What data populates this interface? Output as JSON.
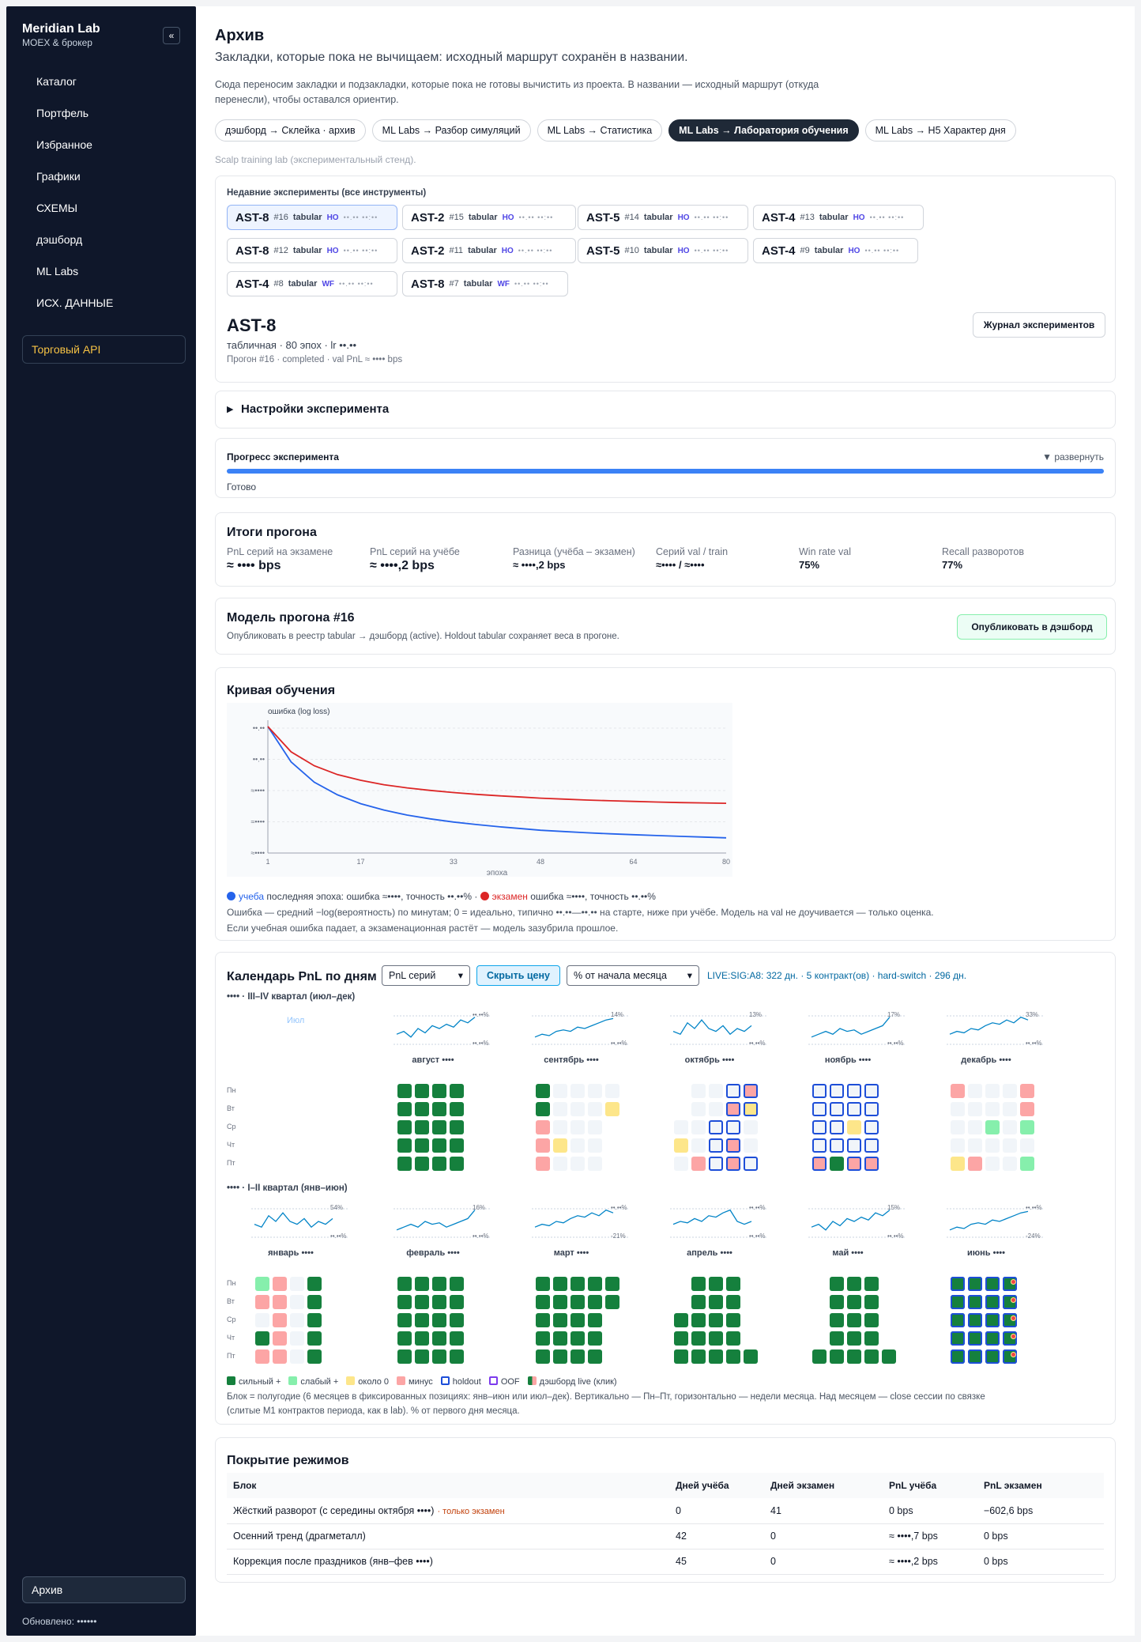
{
  "sidebar": {
    "brand": "Meridian Lab",
    "brand_sub": "MOEX & брокер",
    "collapse": "«",
    "items": [
      "Каталог",
      "Портфель",
      "Избранное",
      "Графики",
      "СХЕМЫ",
      "дэшборд",
      "ML Labs",
      "ИСХ. ДАННЫЕ"
    ],
    "trade_api": "Торговый API",
    "archive": "Архив",
    "updated": "Обновлено: ••••••"
  },
  "header": {
    "title": "Архив",
    "subtitle": "Закладки, которые пока не вычищаем: исходный маршрут сохранён в названии.",
    "description": "Сюда переносим закладки и подзакладки, которые пока не готовы вычистить из проекта. В названии — исходный маршрут (откуда перенесли), чтобы оставался ориентир."
  },
  "tabs": [
    {
      "label": "дэшборд → Склейка · архив",
      "active": false
    },
    {
      "label": "ML Labs → Разбор симуляций",
      "active": false
    },
    {
      "label": "ML Labs → Статистика",
      "active": false
    },
    {
      "label": "ML Labs → Лаборатория обучения",
      "active": true
    },
    {
      "label": "ML Labs → H5 Характер дня",
      "active": false
    }
  ],
  "note": "Scalp training lab (экспериментальный стенд).",
  "experiments": {
    "label": "Недавние эксперименты (все инструменты)",
    "chips": [
      {
        "asset": "AST-8",
        "run": "#16",
        "kind": "tabular",
        "tag": "HO",
        "date": "••.•• ••:••",
        "active": true
      },
      {
        "asset": "AST-2",
        "run": "#15",
        "kind": "tabular",
        "tag": "HO",
        "date": "••.•• ••:••",
        "active": false
      },
      {
        "asset": "AST-5",
        "run": "#14",
        "kind": "tabular",
        "tag": "HO",
        "date": "••.•• ••:••",
        "active": false
      },
      {
        "asset": "AST-4",
        "run": "#13",
        "kind": "tabular",
        "tag": "HO",
        "date": "••.•• ••:••",
        "active": false
      },
      {
        "asset": "AST-8",
        "run": "#12",
        "kind": "tabular",
        "tag": "HO",
        "date": "••.•• ••:••",
        "active": false
      },
      {
        "asset": "AST-2",
        "run": "#11",
        "kind": "tabular",
        "tag": "HO",
        "date": "••.•• ••:••",
        "active": false
      },
      {
        "asset": "AST-5",
        "run": "#10",
        "kind": "tabular",
        "tag": "HO",
        "date": "••.•• ••:••",
        "active": false
      },
      {
        "asset": "AST-4",
        "run": "#9",
        "kind": "tabular",
        "tag": "HO",
        "date": "••.•• ••:••",
        "active": false
      },
      {
        "asset": "AST-4",
        "run": "#8",
        "kind": "tabular",
        "tag": "WF",
        "date": "••.•• ••:••",
        "active": false
      },
      {
        "asset": "AST-8",
        "run": "#7",
        "kind": "tabular",
        "tag": "WF",
        "date": "••.•• ••:••",
        "active": false
      }
    ],
    "selected_title": "AST-8",
    "selected_meta": "табличная · 80 эпох · lr ••.••",
    "selected_run": "Прогон #16 · completed · val PnL ≈ •••• bps",
    "journal_button": "Журнал экспериментов"
  },
  "settings": {
    "label": "Настройки эксперимента",
    "arrow": "▶"
  },
  "progress": {
    "label": "Прогресс эксперимента",
    "expand": "▼ развернуть",
    "status": "Готово",
    "value": 1.0
  },
  "results": {
    "title": "Итоги прогона",
    "stats": [
      {
        "label": "PnL серий на экзамене",
        "value": "≈ •••• bps",
        "big": true
      },
      {
        "label": "PnL серий на учёбе",
        "value": "≈ ••••,2 bps",
        "big": true
      },
      {
        "label": "Разница (учёба – экзамен)",
        "value": "≈ ••••,2 bps",
        "big": false
      },
      {
        "label": "Серий val / train",
        "value": "≈•••• / ≈••••",
        "big": false
      },
      {
        "label": "Win rate val",
        "value": "75%",
        "big": false
      },
      {
        "label": "Recall разворотов",
        "value": "77%",
        "big": false
      }
    ]
  },
  "model": {
    "title": "Модель прогона #16",
    "desc": "Опубликовать в реестр tabular → дэшборд (active). Holdout tabular сохраняет веса в прогоне.",
    "button": "Опубликовать в дэшборд"
  },
  "curve": {
    "title": "Кривая обучения",
    "ylabel": "ошибка (log loss)",
    "xlabel": "эпоха",
    "yticks": [
      "••.••",
      "••.••",
      "≈••••",
      "≈••••",
      "≈••••"
    ],
    "xticks": [
      "1",
      "17",
      "33",
      "48",
      "64",
      "80"
    ],
    "legend_train": "учеба",
    "legend_train_text": "последняя эпоха: ошибка ≈••••, точность ••.••% ·",
    "legend_test": "экзамен",
    "legend_test_text": "ошибка ≈••••, точность ••.••%",
    "note1": "Ошибка — средний −log(вероятность) по минутам; 0 = идеально, типично ••.••—••.•• на старте, ниже при учёбе. Модель на val не доучивается — только оценка.",
    "note2": "Если учебная ошибка падает, а экзаменационная растёт — модель зазубрила прошлое.",
    "colors": {
      "train": "#2563eb",
      "test": "#dc2626"
    }
  },
  "chart_data": {
    "type": "line",
    "title": "Кривая обучения",
    "xlabel": "эпоха",
    "ylabel": "ошибка (log loss)",
    "x": [
      1,
      5,
      9,
      13,
      17,
      21,
      25,
      29,
      33,
      37,
      41,
      45,
      48,
      52,
      56,
      60,
      64,
      68,
      72,
      76,
      80
    ],
    "series": [
      {
        "name": "учеба",
        "values": [
          1.0,
          0.72,
          0.56,
          0.46,
          0.39,
          0.34,
          0.3,
          0.27,
          0.245,
          0.225,
          0.207,
          0.192,
          0.18,
          0.17,
          0.16,
          0.152,
          0.145,
          0.138,
          0.132,
          0.126,
          0.12
        ]
      },
      {
        "name": "экзамен",
        "values": [
          1.0,
          0.8,
          0.69,
          0.62,
          0.575,
          0.54,
          0.515,
          0.495,
          0.478,
          0.464,
          0.452,
          0.442,
          0.434,
          0.426,
          0.419,
          0.413,
          0.408,
          0.403,
          0.399,
          0.396,
          0.393
        ]
      }
    ],
    "ylim": [
      0,
      1.05
    ],
    "grid": true
  },
  "calendar": {
    "title": "Календарь PnL по дням",
    "mode_select": "PnL серий",
    "hide_price": "Скрыть цену",
    "pct_select": "% от начала месяца",
    "live": "LIVE:SIG:A8: 322 дн. · 5 контракт(ов) · hard-switch · 296 дн.",
    "days": [
      "Пн",
      "Вт",
      "Ср",
      "Чт",
      "Пт"
    ],
    "block1": "•••• · III–IV квартал (июл–дек)",
    "block2": "•••• · I–II квартал (янв–июн)",
    "july": "Июл",
    "months1": [
      {
        "name": "август ••••",
        "hi": "••.••%",
        "lo": "••.••%"
      },
      {
        "name": "сентябрь ••••",
        "hi": "14%",
        "lo": "••.••%"
      },
      {
        "name": "октябрь ••••",
        "hi": "13%",
        "lo": "••.••%"
      },
      {
        "name": "ноябрь ••••",
        "hi": "17%",
        "lo": "••.••%"
      },
      {
        "name": "декабрь ••••",
        "hi": "33%",
        "lo": "••.••%"
      }
    ],
    "months2": [
      {
        "name": "январь ••••",
        "hi": "54%",
        "lo": "••.••%"
      },
      {
        "name": "февраль ••••",
        "hi": "16%",
        "lo": "••.••%"
      },
      {
        "name": "март ••••",
        "hi": "••.••%",
        "lo": "-21%"
      },
      {
        "name": "апрель ••••",
        "hi": "••.••%",
        "lo": "••.••%"
      },
      {
        "name": "май ••••",
        "hi": "15%",
        "lo": "••.••%"
      },
      {
        "name": "июнь ••••",
        "hi": "••.••%",
        "lo": "-24%"
      }
    ],
    "legend": [
      "сильный +",
      "слабый +",
      "около 0",
      "минус",
      "holdout",
      "OOF",
      "дэшборд live (клик)"
    ],
    "note1": "Блок = полугодие (6 месяцев в фиксированных позициях: янв–июн или июл–дек). Вертикально — Пн–Пт, горизонтально — недели месяца. Над месяцем — close сессии по связке",
    "note2": "(слитые M1 контрактов периода, как в lab). % от первого дня месяца.",
    "colors": {
      "strong": "#15803d",
      "weak": "#86efac",
      "zero": "#fde68a",
      "minus": "#fca5a5",
      "empty": "#f1f5f9",
      "holdout": "#1d4ed8"
    }
  },
  "coverage": {
    "title": "Покрытие режимов",
    "headers": [
      "Блок",
      "Дней учёба",
      "Дней экзамен",
      "PnL учёба",
      "PnL экзамен"
    ],
    "rows": [
      {
        "block": "Жёсткий разворот (с середины октября ••••)",
        "tag": "· только экзамен",
        "train": "0",
        "test": "41",
        "pnl_train": "0 bps",
        "pnl_test": "−602,6 bps"
      },
      {
        "block": "Осенний тренд (драгметалл)",
        "tag": "",
        "train": "42",
        "test": "0",
        "pnl_train": "≈ ••••,7 bps",
        "pnl_test": "0 bps"
      },
      {
        "block": "Коррекция после праздников (янв–фев ••••)",
        "tag": "",
        "train": "45",
        "test": "0",
        "pnl_train": "≈ ••••,2 bps",
        "pnl_test": "0 bps"
      }
    ]
  }
}
